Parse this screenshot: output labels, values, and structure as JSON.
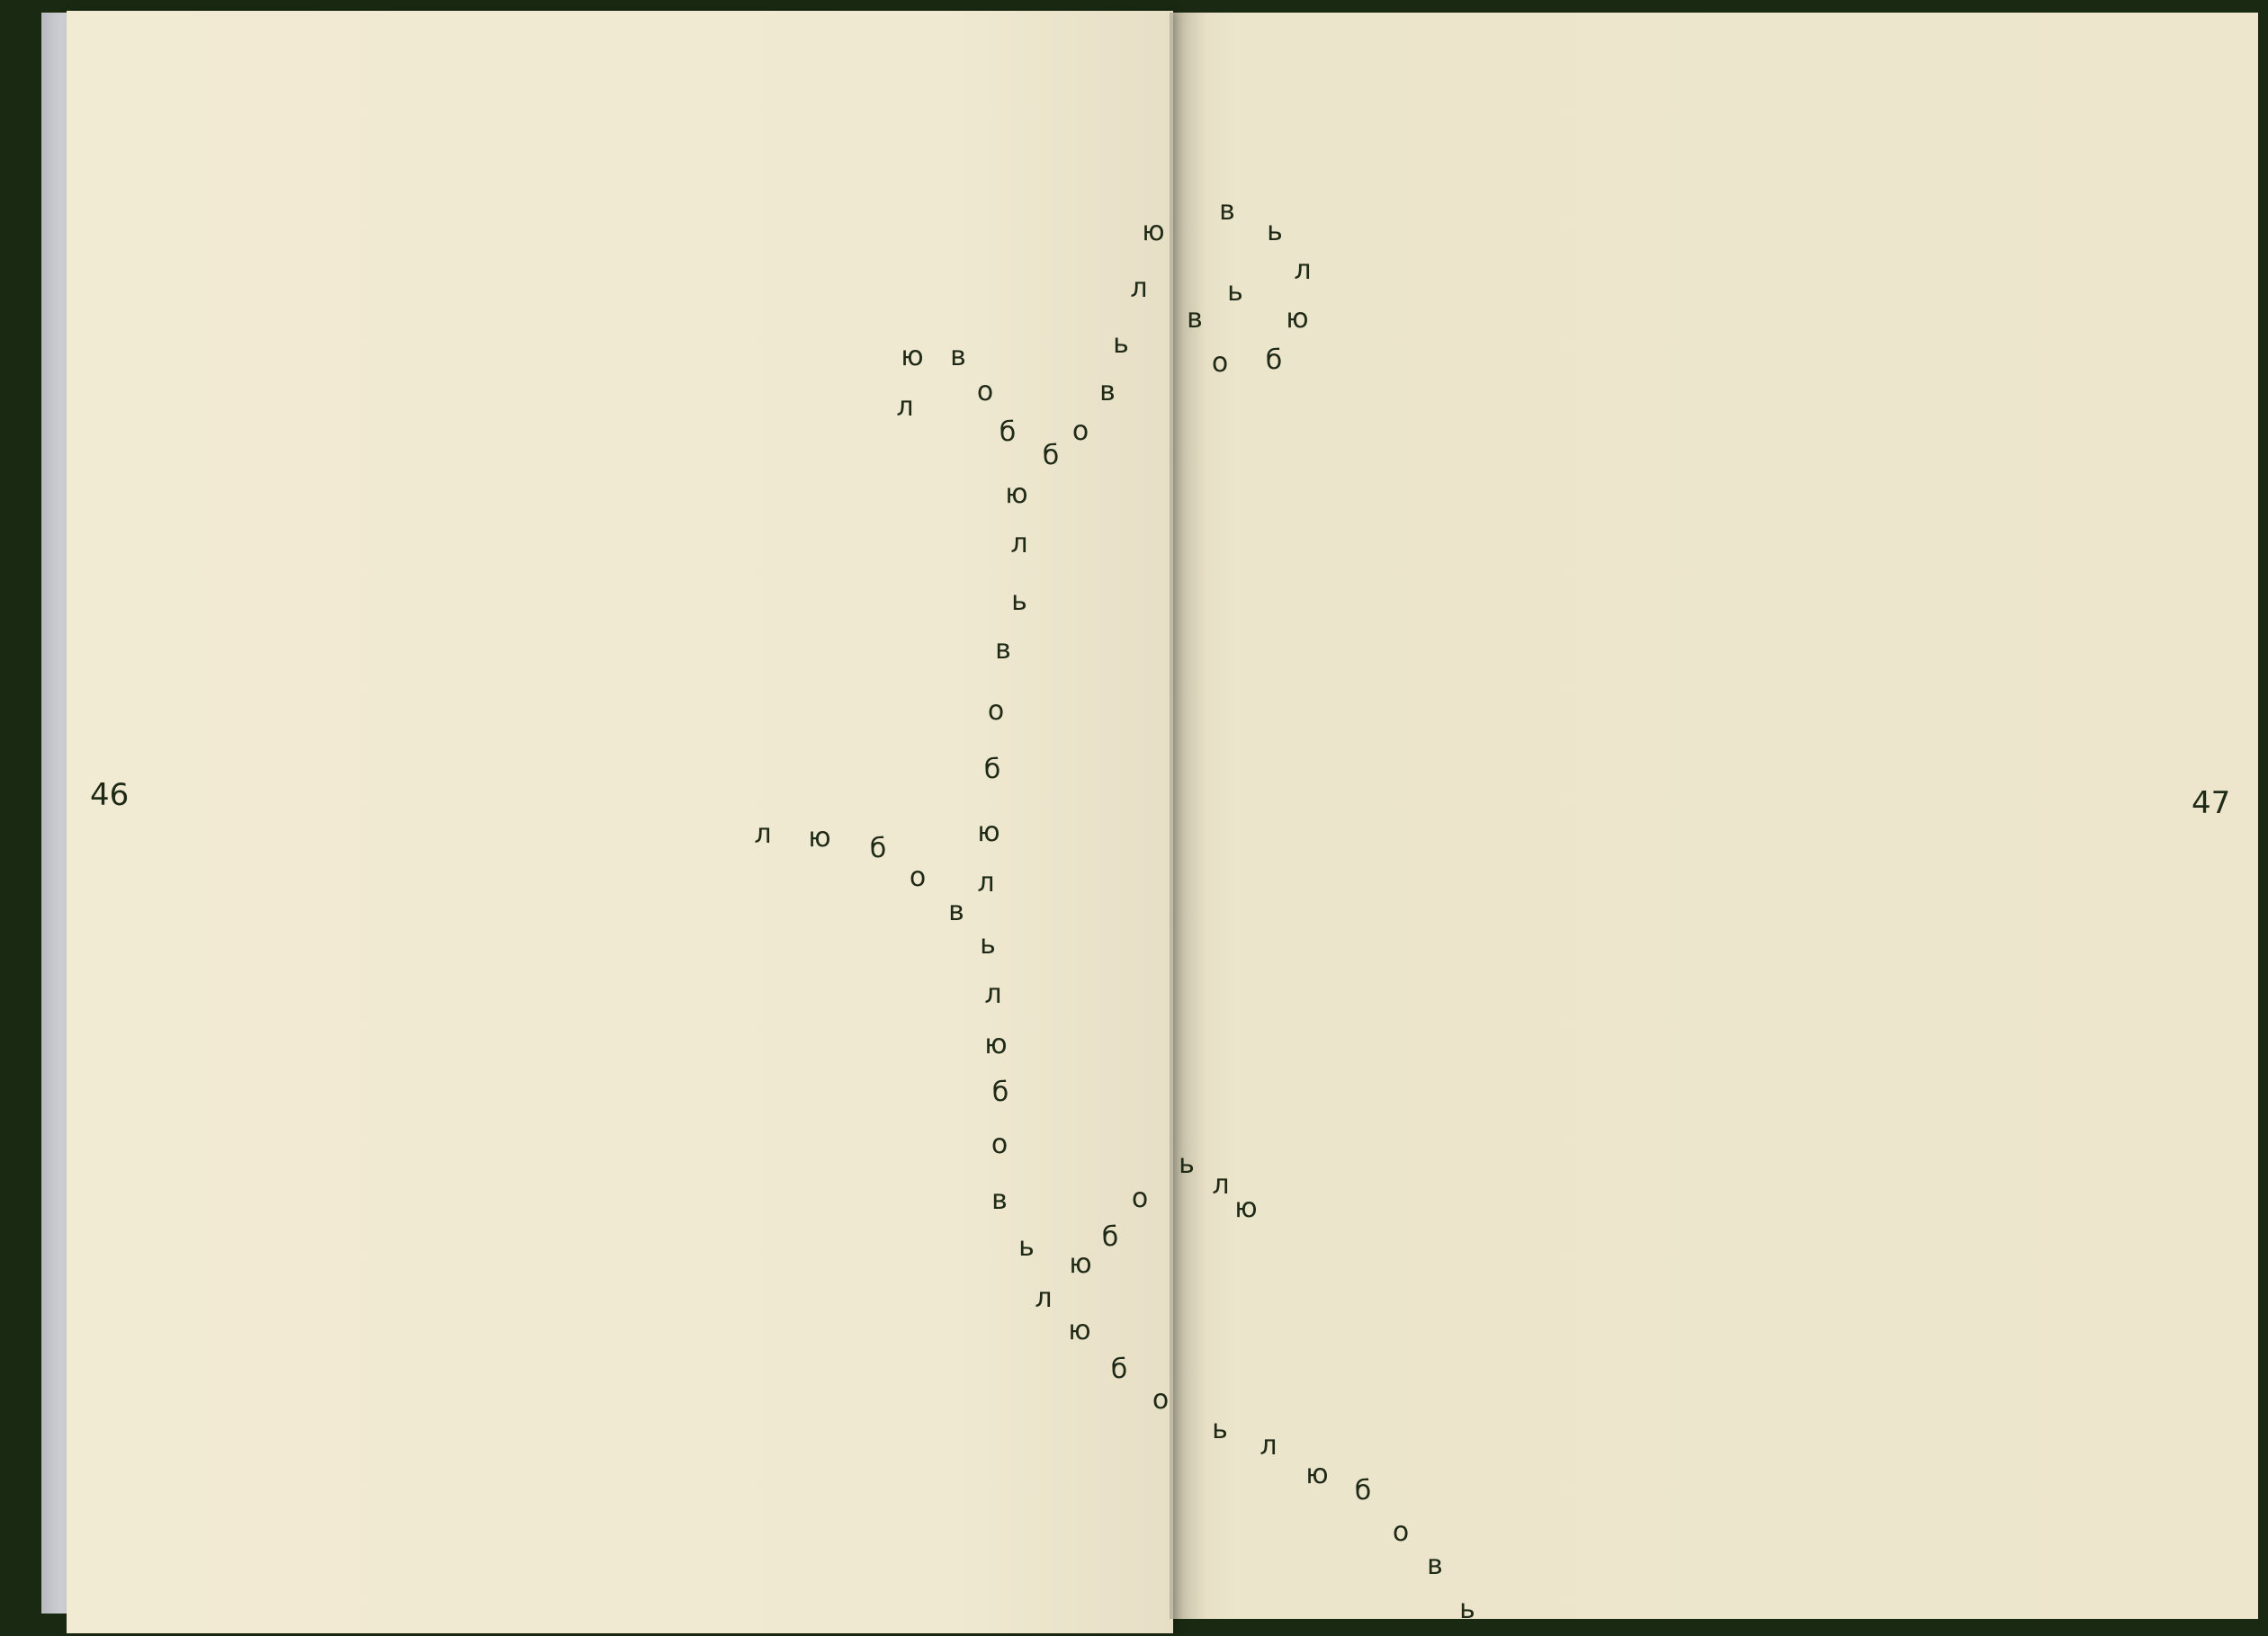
{
  "pages": {
    "left_number": "46",
    "right_number": "47"
  },
  "poem": {
    "word": "любовь",
    "letters": [
      "ю",
      "в",
      "ь",
      "л",
      "л",
      "ь",
      "ю",
      "в",
      "б",
      "о",
      "ю",
      "в",
      "л",
      "о",
      "ь",
      "в",
      "б",
      "о",
      "б",
      "ю",
      "л",
      "ь",
      "в",
      "о",
      "б",
      "л",
      "ю",
      "б",
      "ю",
      "о",
      "л",
      "в",
      "ь",
      "л",
      "ю",
      "б",
      "о",
      "в",
      "ь",
      "л",
      "ю",
      "о",
      "б",
      "ь",
      "ю",
      "л",
      "ю",
      "б",
      "о",
      "ь",
      "л",
      "ю",
      "б",
      "о",
      "в",
      "ь"
    ]
  },
  "colors": {
    "ink": "#1f2a16",
    "paper": "#f0e9d1",
    "cover": "#1a2a12"
  }
}
